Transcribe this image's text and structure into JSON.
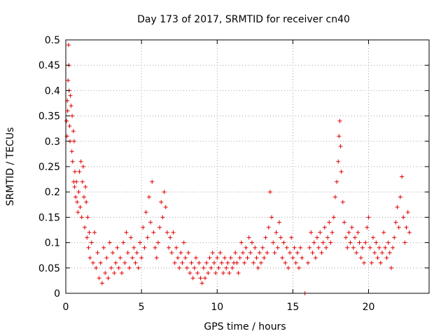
{
  "chart_data": {
    "type": "scatter",
    "title": "Day 173 of 2017, SRMTID for receiver cn40",
    "xlabel": "GPS time / hours",
    "ylabel": "SRMTID / TECUs",
    "xlim": [
      0,
      24
    ],
    "ylim": [
      0,
      0.5
    ],
    "x_ticks": [
      0,
      5,
      10,
      15,
      20
    ],
    "x_tick_labels": [
      "0",
      "5",
      "10",
      "15",
      "20"
    ],
    "y_ticks": [
      0,
      0.05,
      0.1,
      0.15,
      0.2,
      0.25,
      0.3,
      0.35,
      0.4,
      0.45,
      0.5
    ],
    "y_tick_labels": [
      "0",
      "0.05",
      "0.1",
      "0.15",
      "0.2",
      "0.25",
      "0.3",
      "0.35",
      "0.4",
      "0.45",
      "0.5"
    ],
    "grid": true,
    "marker": "+",
    "color": "#e00000",
    "series": [
      {
        "name": "SRMTID",
        "points": [
          [
            0.05,
            0.34
          ],
          [
            0.08,
            0.31
          ],
          [
            0.1,
            0.38
          ],
          [
            0.12,
            0.36
          ],
          [
            0.15,
            0.42
          ],
          [
            0.18,
            0.49
          ],
          [
            0.2,
            0.45
          ],
          [
            0.22,
            0.4
          ],
          [
            0.25,
            0.33
          ],
          [
            0.28,
            0.3
          ],
          [
            0.3,
            0.39
          ],
          [
            0.35,
            0.37
          ],
          [
            0.4,
            0.28
          ],
          [
            0.42,
            0.35
          ],
          [
            0.45,
            0.26
          ],
          [
            0.5,
            0.32
          ],
          [
            0.52,
            0.22
          ],
          [
            0.55,
            0.3
          ],
          [
            0.58,
            0.21
          ],
          [
            0.6,
            0.24
          ],
          [
            0.65,
            0.19
          ],
          [
            0.7,
            0.22
          ],
          [
            0.75,
            0.18
          ],
          [
            0.8,
            0.16
          ],
          [
            0.85,
            0.2
          ],
          [
            0.9,
            0.24
          ],
          [
            0.95,
            0.17
          ],
          [
            1.0,
            0.26
          ],
          [
            1.05,
            0.15
          ],
          [
            1.1,
            0.22
          ],
          [
            1.15,
            0.25
          ],
          [
            1.2,
            0.19
          ],
          [
            1.25,
            0.13
          ],
          [
            1.3,
            0.21
          ],
          [
            1.35,
            0.18
          ],
          [
            1.4,
            0.11
          ],
          [
            1.45,
            0.15
          ],
          [
            1.5,
            0.09
          ],
          [
            1.55,
            0.12
          ],
          [
            1.6,
            0.07
          ],
          [
            1.7,
            0.1
          ],
          [
            1.8,
            0.06
          ],
          [
            1.9,
            0.12
          ],
          [
            2.0,
            0.05
          ],
          [
            2.1,
            0.08
          ],
          [
            2.2,
            0.03
          ],
          [
            2.3,
            0.06
          ],
          [
            2.4,
            0.02
          ],
          [
            2.5,
            0.09
          ],
          [
            2.6,
            0.04
          ],
          [
            2.7,
            0.07
          ],
          [
            2.8,
            0.03
          ],
          [
            2.9,
            0.1
          ],
          [
            3.0,
            0.05
          ],
          [
            3.1,
            0.08
          ],
          [
            3.2,
            0.04
          ],
          [
            3.3,
            0.06
          ],
          [
            3.4,
            0.09
          ],
          [
            3.5,
            0.05
          ],
          [
            3.6,
            0.07
          ],
          [
            3.7,
            0.04
          ],
          [
            3.8,
            0.1
          ],
          [
            3.9,
            0.06
          ],
          [
            4.0,
            0.12
          ],
          [
            4.1,
            0.08
          ],
          [
            4.2,
            0.05
          ],
          [
            4.3,
            0.11
          ],
          [
            4.4,
            0.07
          ],
          [
            4.5,
            0.09
          ],
          [
            4.6,
            0.06
          ],
          [
            4.7,
            0.08
          ],
          [
            4.8,
            0.05
          ],
          [
            4.9,
            0.1
          ],
          [
            5.0,
            0.07
          ],
          [
            5.1,
            0.13
          ],
          [
            5.2,
            0.09
          ],
          [
            5.3,
            0.16
          ],
          [
            5.4,
            0.11
          ],
          [
            5.5,
            0.19
          ],
          [
            5.6,
            0.14
          ],
          [
            5.7,
            0.22
          ],
          [
            5.8,
            0.12
          ],
          [
            5.9,
            0.09
          ],
          [
            6.0,
            0.07
          ],
          [
            6.1,
            0.1
          ],
          [
            6.2,
            0.13
          ],
          [
            6.3,
            0.18
          ],
          [
            6.4,
            0.15
          ],
          [
            6.5,
            0.2
          ],
          [
            6.6,
            0.17
          ],
          [
            6.7,
            0.12
          ],
          [
            6.8,
            0.09
          ],
          [
            6.9,
            0.11
          ],
          [
            7.0,
            0.08
          ],
          [
            7.1,
            0.12
          ],
          [
            7.2,
            0.06
          ],
          [
            7.3,
            0.09
          ],
          [
            7.4,
            0.07
          ],
          [
            7.5,
            0.05
          ],
          [
            7.6,
            0.08
          ],
          [
            7.7,
            0.06
          ],
          [
            7.8,
            0.1
          ],
          [
            7.9,
            0.07
          ],
          [
            8.0,
            0.05
          ],
          [
            8.1,
            0.08
          ],
          [
            8.2,
            0.04
          ],
          [
            8.3,
            0.06
          ],
          [
            8.4,
            0.03
          ],
          [
            8.5,
            0.05
          ],
          [
            8.6,
            0.07
          ],
          [
            8.7,
            0.04
          ],
          [
            8.8,
            0.06
          ],
          [
            8.9,
            0.03
          ],
          [
            9.0,
            0.02
          ],
          [
            9.1,
            0.05
          ],
          [
            9.2,
            0.03
          ],
          [
            9.3,
            0.06
          ],
          [
            9.4,
            0.04
          ],
          [
            9.5,
            0.07
          ],
          [
            9.6,
            0.05
          ],
          [
            9.7,
            0.08
          ],
          [
            9.8,
            0.06
          ],
          [
            9.9,
            0.04
          ],
          [
            10.0,
            0.07
          ],
          [
            10.1,
            0.05
          ],
          [
            10.2,
            0.08
          ],
          [
            10.3,
            0.06
          ],
          [
            10.4,
            0.04
          ],
          [
            10.5,
            0.07
          ],
          [
            10.6,
            0.05
          ],
          [
            10.7,
            0.06
          ],
          [
            10.8,
            0.04
          ],
          [
            10.9,
            0.07
          ],
          [
            11.0,
            0.05
          ],
          [
            11.1,
            0.06
          ],
          [
            11.2,
            0.08
          ],
          [
            11.3,
            0.06
          ],
          [
            11.4,
            0.04
          ],
          [
            11.5,
            0.07
          ],
          [
            11.6,
            0.1
          ],
          [
            11.7,
            0.08
          ],
          [
            11.8,
            0.06
          ],
          [
            11.9,
            0.09
          ],
          [
            12.0,
            0.07
          ],
          [
            12.1,
            0.11
          ],
          [
            12.2,
            0.08
          ],
          [
            12.3,
            0.1
          ],
          [
            12.4,
            0.06
          ],
          [
            12.5,
            0.09
          ],
          [
            12.6,
            0.07
          ],
          [
            12.7,
            0.05
          ],
          [
            12.8,
            0.08
          ],
          [
            12.9,
            0.06
          ],
          [
            13.0,
            0.09
          ],
          [
            13.1,
            0.07
          ],
          [
            13.2,
            0.11
          ],
          [
            13.3,
            0.08
          ],
          [
            13.4,
            0.13
          ],
          [
            13.5,
            0.2
          ],
          [
            13.6,
            0.15
          ],
          [
            13.7,
            0.1
          ],
          [
            13.8,
            0.08
          ],
          [
            13.9,
            0.12
          ],
          [
            14.0,
            0.09
          ],
          [
            14.1,
            0.14
          ],
          [
            14.2,
            0.11
          ],
          [
            14.3,
            0.07
          ],
          [
            14.4,
            0.1
          ],
          [
            14.5,
            0.06
          ],
          [
            14.6,
            0.09
          ],
          [
            14.7,
            0.05
          ],
          [
            14.8,
            0.08
          ],
          [
            14.9,
            0.11
          ],
          [
            15.0,
            0.07
          ],
          [
            15.1,
            0.09
          ],
          [
            15.2,
            0.06
          ],
          [
            15.3,
            0.08
          ],
          [
            15.4,
            0.05
          ],
          [
            15.5,
            0.09
          ],
          [
            15.6,
            0.07
          ],
          [
            15.8,
            0.0
          ],
          [
            16.0,
            0.06
          ],
          [
            16.1,
            0.09
          ],
          [
            16.2,
            0.12
          ],
          [
            16.3,
            0.08
          ],
          [
            16.4,
            0.1
          ],
          [
            16.5,
            0.07
          ],
          [
            16.6,
            0.11
          ],
          [
            16.7,
            0.09
          ],
          [
            16.8,
            0.12
          ],
          [
            16.9,
            0.08
          ],
          [
            17.0,
            0.1
          ],
          [
            17.1,
            0.13
          ],
          [
            17.2,
            0.09
          ],
          [
            17.3,
            0.11
          ],
          [
            17.4,
            0.14
          ],
          [
            17.5,
            0.1
          ],
          [
            17.6,
            0.12
          ],
          [
            17.7,
            0.15
          ],
          [
            17.8,
            0.19
          ],
          [
            17.9,
            0.22
          ],
          [
            18.0,
            0.26
          ],
          [
            18.05,
            0.31
          ],
          [
            18.1,
            0.34
          ],
          [
            18.15,
            0.29
          ],
          [
            18.2,
            0.24
          ],
          [
            18.3,
            0.18
          ],
          [
            18.4,
            0.14
          ],
          [
            18.5,
            0.11
          ],
          [
            18.6,
            0.09
          ],
          [
            18.7,
            0.12
          ],
          [
            18.8,
            0.1
          ],
          [
            18.9,
            0.13
          ],
          [
            19.0,
            0.09
          ],
          [
            19.1,
            0.11
          ],
          [
            19.2,
            0.08
          ],
          [
            19.3,
            0.12
          ],
          [
            19.4,
            0.1
          ],
          [
            19.5,
            0.07
          ],
          [
            19.6,
            0.09
          ],
          [
            19.7,
            0.06
          ],
          [
            19.8,
            0.1
          ],
          [
            19.9,
            0.13
          ],
          [
            20.0,
            0.15
          ],
          [
            20.1,
            0.09
          ],
          [
            20.2,
            0.06
          ],
          [
            20.3,
            0.11
          ],
          [
            20.4,
            0.08
          ],
          [
            20.5,
            0.1
          ],
          [
            20.6,
            0.07
          ],
          [
            20.7,
            0.09
          ],
          [
            20.8,
            0.06
          ],
          [
            20.9,
            0.08
          ],
          [
            21.0,
            0.12
          ],
          [
            21.1,
            0.09
          ],
          [
            21.2,
            0.07
          ],
          [
            21.3,
            0.1
          ],
          [
            21.4,
            0.08
          ],
          [
            21.5,
            0.05
          ],
          [
            21.6,
            0.09
          ],
          [
            21.7,
            0.11
          ],
          [
            21.8,
            0.14
          ],
          [
            21.9,
            0.17
          ],
          [
            22.0,
            0.13
          ],
          [
            22.1,
            0.19
          ],
          [
            22.2,
            0.23
          ],
          [
            22.3,
            0.15
          ],
          [
            22.4,
            0.1
          ],
          [
            22.5,
            0.13
          ],
          [
            22.6,
            0.16
          ],
          [
            22.7,
            0.12
          ]
        ]
      }
    ]
  }
}
